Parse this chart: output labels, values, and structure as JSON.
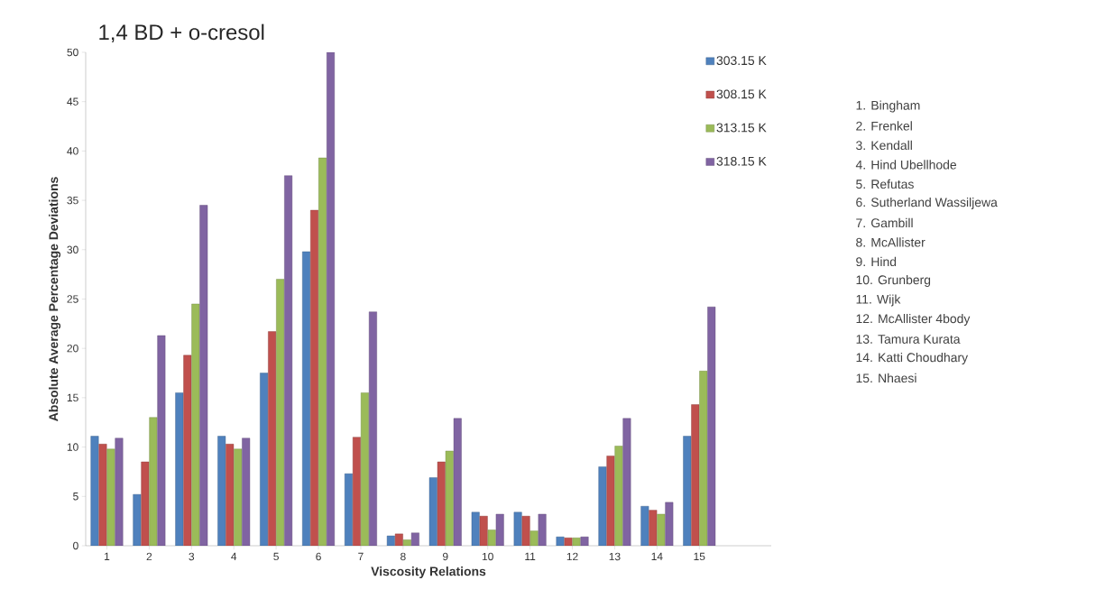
{
  "chart_data": {
    "type": "bar",
    "title": "1,4 BD + o-cresol",
    "xlabel": "Viscosity Relations",
    "ylabel": "Absolute Average Percentage Deviations",
    "categories": [
      "1",
      "2",
      "3",
      "4",
      "5",
      "6",
      "7",
      "8",
      "9",
      "10",
      "11",
      "12",
      "13",
      "14",
      "15"
    ],
    "series": [
      {
        "name": "303.15 K",
        "color": "#4f81bd",
        "values": [
          11.1,
          5.2,
          15.5,
          11.1,
          17.5,
          29.8,
          7.3,
          1.0,
          6.9,
          3.4,
          3.4,
          0.9,
          8.0,
          4.0,
          11.1
        ]
      },
      {
        "name": "308.15 K",
        "color": "#c0504d",
        "values": [
          10.3,
          8.5,
          19.3,
          10.3,
          21.7,
          34.0,
          11.0,
          1.2,
          8.5,
          3.0,
          3.0,
          0.8,
          9.1,
          3.6,
          14.3
        ]
      },
      {
        "name": "313.15 K",
        "color": "#9bbb59",
        "values": [
          9.8,
          13.0,
          24.5,
          9.8,
          27.0,
          39.3,
          15.5,
          0.6,
          9.6,
          1.6,
          1.5,
          0.8,
          10.1,
          3.2,
          17.7
        ]
      },
      {
        "name": "318.15 K",
        "color": "#8064a2",
        "values": [
          10.9,
          21.3,
          34.5,
          10.9,
          37.5,
          50.0,
          23.7,
          1.3,
          12.9,
          3.2,
          3.2,
          0.9,
          12.9,
          4.4,
          24.2
        ]
      }
    ],
    "ylim": [
      0,
      50
    ],
    "yticks": [
      0,
      5,
      10,
      15,
      20,
      25,
      30,
      35,
      40,
      45,
      50
    ],
    "grid": false,
    "legend": "top right",
    "annotations": [
      "1. Bingham",
      "2. Frenkel",
      "3. Kendall",
      "4. Hind Ubellhode",
      "5. Refutas",
      "6. Sutherland Wassiljewa",
      "7. Gambill",
      "8. McAllister",
      "9. Hind",
      "10. Grunberg",
      "11. Wijk",
      "12. McAllister 4body",
      "13. Tamura Kurata",
      "14. Katti Choudhary",
      "15. Nhaesi"
    ]
  }
}
